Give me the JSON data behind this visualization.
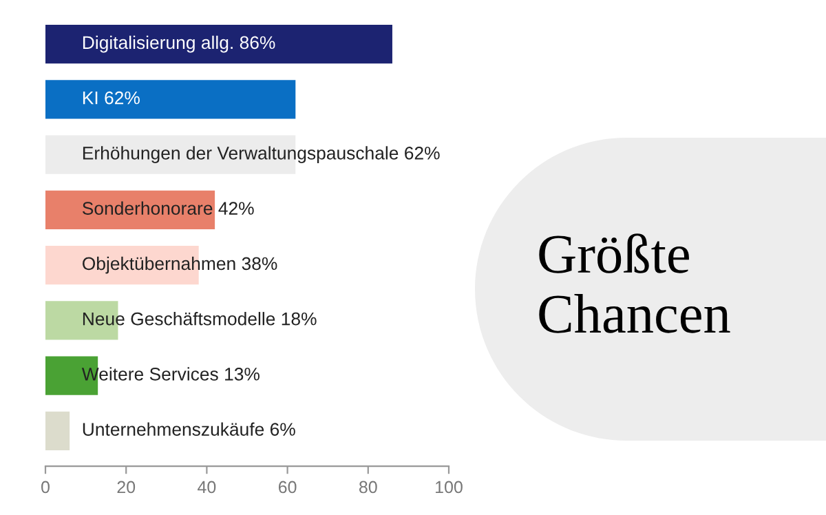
{
  "chart_data": {
    "type": "bar",
    "orientation": "horizontal",
    "title": "Größte Chancen",
    "categories": [
      "Digitalisierung allg.",
      "KI",
      "Erhöhungen der Verwaltungspauschale",
      "Sonderhonorare",
      "Objektübernahmen",
      "Neue Geschäftsmodelle",
      "Weitere Services",
      "Unternehmenszukäufe"
    ],
    "values": [
      86,
      62,
      62,
      42,
      38,
      18,
      13,
      6
    ],
    "value_labels": [
      "86%",
      "62%",
      "62%",
      "42%",
      "38%",
      "18%",
      "13%",
      "6%"
    ],
    "colors": [
      "#1c2371",
      "#0a6fc4",
      "#ececec",
      "#e8806a",
      "#fdd7cf",
      "#bcd9a3",
      "#4aa234",
      "#dcdccc"
    ],
    "xlim": [
      0,
      100
    ],
    "xticks": [
      0,
      20,
      40,
      60,
      80,
      100
    ],
    "grid": false,
    "legend": false
  }
}
